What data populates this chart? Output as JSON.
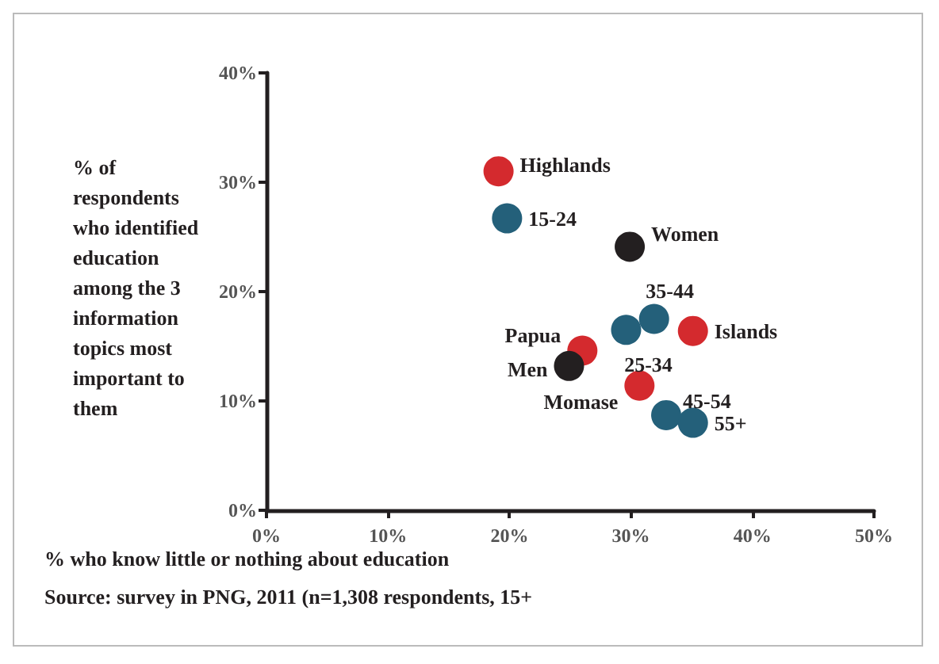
{
  "chart_data": {
    "type": "scatter",
    "xlabel": "% who know little or nothing about education",
    "ylabel": "% of respondents who identified education among the 3 information topics most important to them",
    "annotations": [
      "Source: survey in PNG, 2011 (n=1,308 respondents, 15+"
    ],
    "xlim": [
      0,
      50
    ],
    "ylim": [
      0,
      40
    ],
    "xticks": [
      {
        "value": 0,
        "label": "0%"
      },
      {
        "value": 10,
        "label": "10%"
      },
      {
        "value": 20,
        "label": "20%"
      },
      {
        "value": 30,
        "label": "30%"
      },
      {
        "value": 40,
        "label": "40%"
      },
      {
        "value": 50,
        "label": "50%"
      }
    ],
    "yticks": [
      {
        "value": 0,
        "label": "0%"
      },
      {
        "value": 10,
        "label": "10%"
      },
      {
        "value": 20,
        "label": "20%"
      },
      {
        "value": 30,
        "label": "30%"
      },
      {
        "value": 40,
        "label": "40%"
      }
    ],
    "grid": false,
    "legend": false,
    "marker": "circle",
    "series": [
      {
        "name": "Highlands",
        "color": "#d42a2e",
        "x": [
          19.1
        ],
        "values": [
          31.0
        ]
      },
      {
        "name": "15-24",
        "color": "#24607a",
        "x": [
          19.8
        ],
        "values": [
          26.7
        ]
      },
      {
        "name": "Women",
        "color": "#231f20",
        "x": [
          29.9
        ],
        "values": [
          24.1
        ]
      },
      {
        "name": "35-44",
        "color": "#24607a",
        "x": [
          31.9
        ],
        "values": [
          17.5
        ]
      },
      {
        "name": "25-34",
        "color": "#24607a",
        "x": [
          29.6
        ],
        "values": [
          16.5
        ]
      },
      {
        "name": "Islands",
        "color": "#d42a2e",
        "x": [
          35.1
        ],
        "values": [
          16.4
        ]
      },
      {
        "name": "Papua",
        "color": "#d42a2e",
        "x": [
          26.0
        ],
        "values": [
          14.6
        ]
      },
      {
        "name": "Men",
        "color": "#231f20",
        "x": [
          24.9
        ],
        "values": [
          13.2
        ]
      },
      {
        "name": "Momase",
        "color": "#d42a2e",
        "x": [
          30.7
        ],
        "values": [
          11.4
        ]
      },
      {
        "name": "45-54",
        "color": "#24607a",
        "x": [
          32.9
        ],
        "values": [
          8.7
        ]
      },
      {
        "name": "55+",
        "color": "#24607a",
        "x": [
          35.1
        ],
        "values": [
          8.0
        ]
      }
    ]
  }
}
